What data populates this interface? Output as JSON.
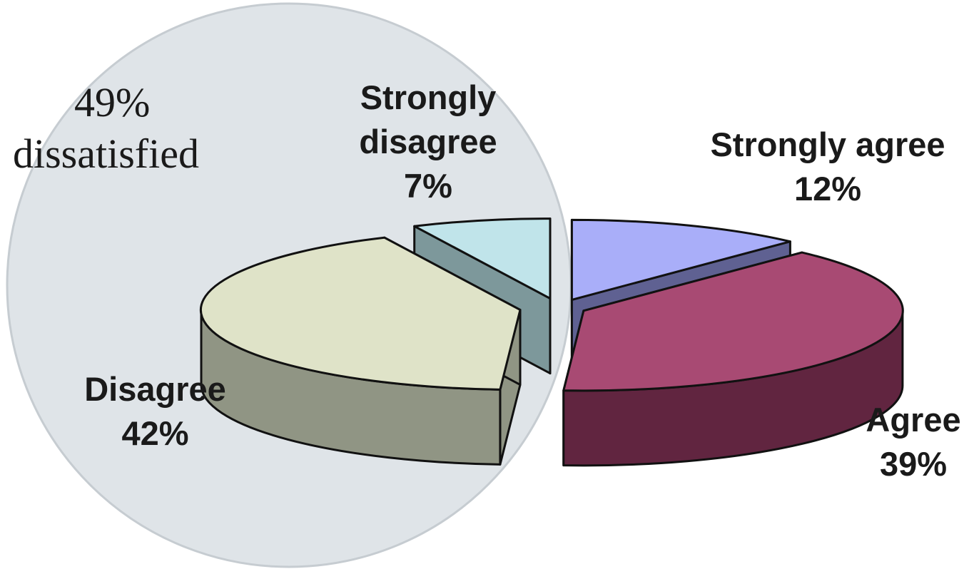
{
  "chart_data": {
    "type": "pie",
    "style": "3d-exploded",
    "slices": [
      {
        "label": "Strongly agree",
        "percent_label": "12%",
        "value": 12,
        "top_color": "#a9aef9",
        "side_color": "#5f6192"
      },
      {
        "label": "Agree",
        "percent_label": "39%",
        "value": 39,
        "top_color": "#a84a73",
        "side_color": "#612540"
      },
      {
        "label": "Disagree",
        "percent_label": "42%",
        "value": 42,
        "top_color": "#dfe3c8",
        "side_color": "#909584"
      },
      {
        "label": "Strongly disagree",
        "percent_label": "7%",
        "value": 7,
        "top_color": "#c0e4ea",
        "side_color": "#7d989b"
      }
    ],
    "highlight": {
      "line1": "49%",
      "line2": "dissatisfied",
      "color": "#dfe4e8",
      "border_color": "#c6ccd1"
    }
  }
}
